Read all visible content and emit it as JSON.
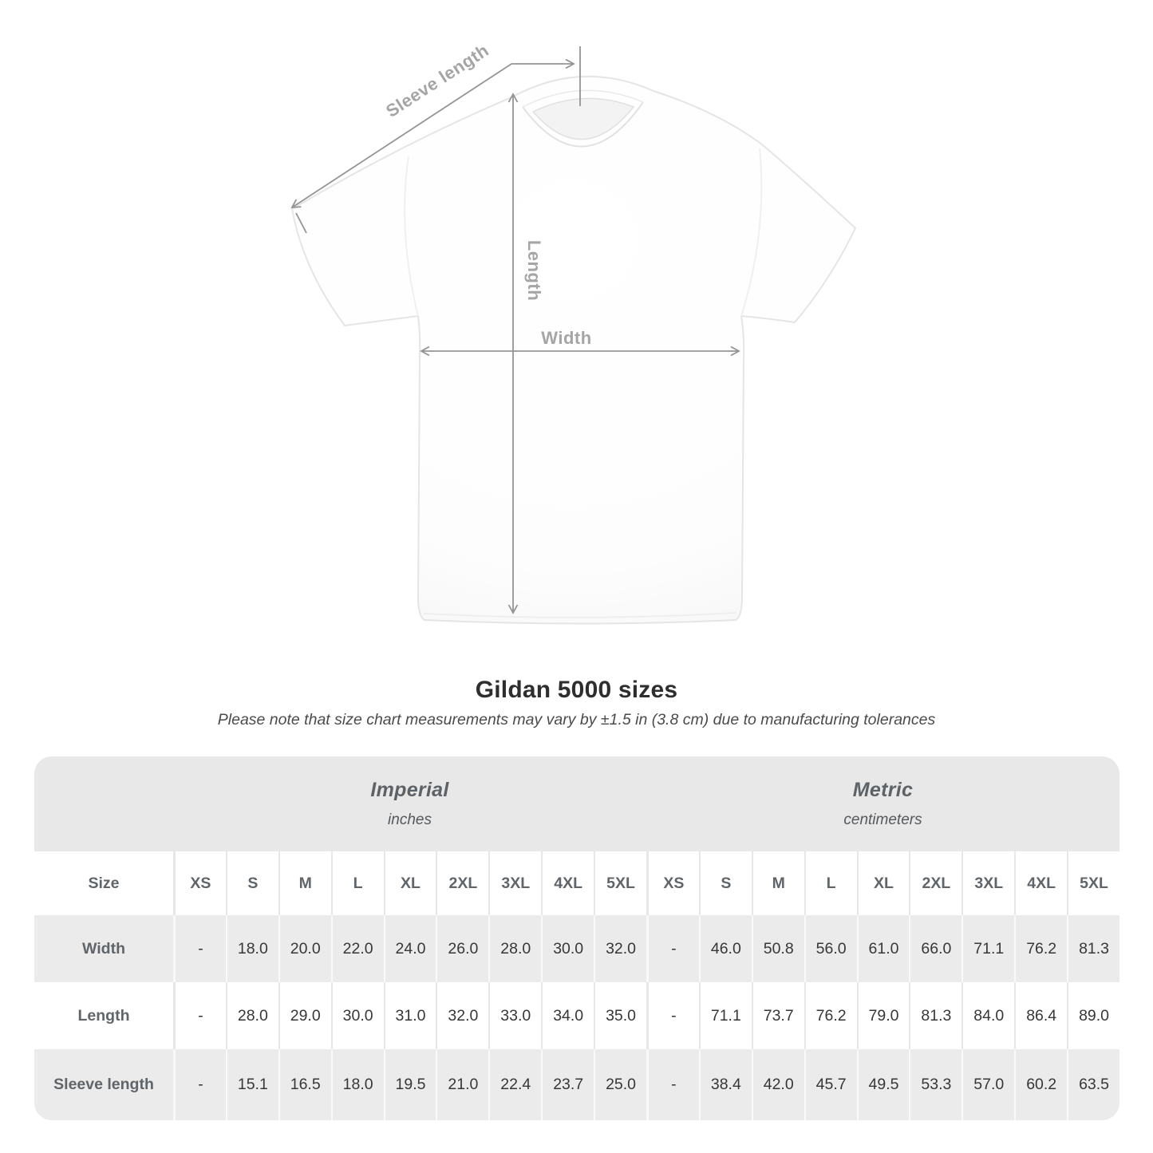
{
  "diagram": {
    "labels": {
      "sleeve_length": "Sleeve length",
      "length": "Length",
      "width": "Width"
    },
    "arrow_color": "#949494",
    "label_color": "#a5a5a5"
  },
  "chart_data": {
    "type": "table",
    "title": "Gildan 5000 sizes",
    "note": "Please note that size chart measurements may vary by ±1.5 in (3.8 cm) due to manufacturing tolerances",
    "unit_groups": [
      {
        "label": "Imperial",
        "sublabel": "inches"
      },
      {
        "label": "Metric",
        "sublabel": "centimeters"
      }
    ],
    "size_header": "Size",
    "sizes": [
      "XS",
      "S",
      "M",
      "L",
      "XL",
      "2XL",
      "3XL",
      "4XL",
      "5XL"
    ],
    "rows": [
      {
        "label": "Width",
        "imperial": [
          "-",
          "18.0",
          "20.0",
          "22.0",
          "24.0",
          "26.0",
          "28.0",
          "30.0",
          "32.0"
        ],
        "metric": [
          "-",
          "46.0",
          "50.8",
          "56.0",
          "61.0",
          "66.0",
          "71.1",
          "76.2",
          "81.3"
        ]
      },
      {
        "label": "Length",
        "imperial": [
          "-",
          "28.0",
          "29.0",
          "30.0",
          "31.0",
          "32.0",
          "33.0",
          "34.0",
          "35.0"
        ],
        "metric": [
          "-",
          "71.1",
          "73.7",
          "76.2",
          "79.0",
          "81.3",
          "84.0",
          "86.4",
          "89.0"
        ]
      },
      {
        "label": "Sleeve length",
        "imperial": [
          "-",
          "15.1",
          "16.5",
          "18.0",
          "19.5",
          "21.0",
          "22.4",
          "23.7",
          "25.0"
        ],
        "metric": [
          "-",
          "38.4",
          "42.0",
          "45.7",
          "49.5",
          "53.3",
          "57.0",
          "60.2",
          "63.5"
        ]
      }
    ],
    "colors": {
      "band": "#e8e8e8",
      "stripe": "#ebebeb",
      "header_text": "#60656a",
      "value_text": "#373737"
    }
  }
}
